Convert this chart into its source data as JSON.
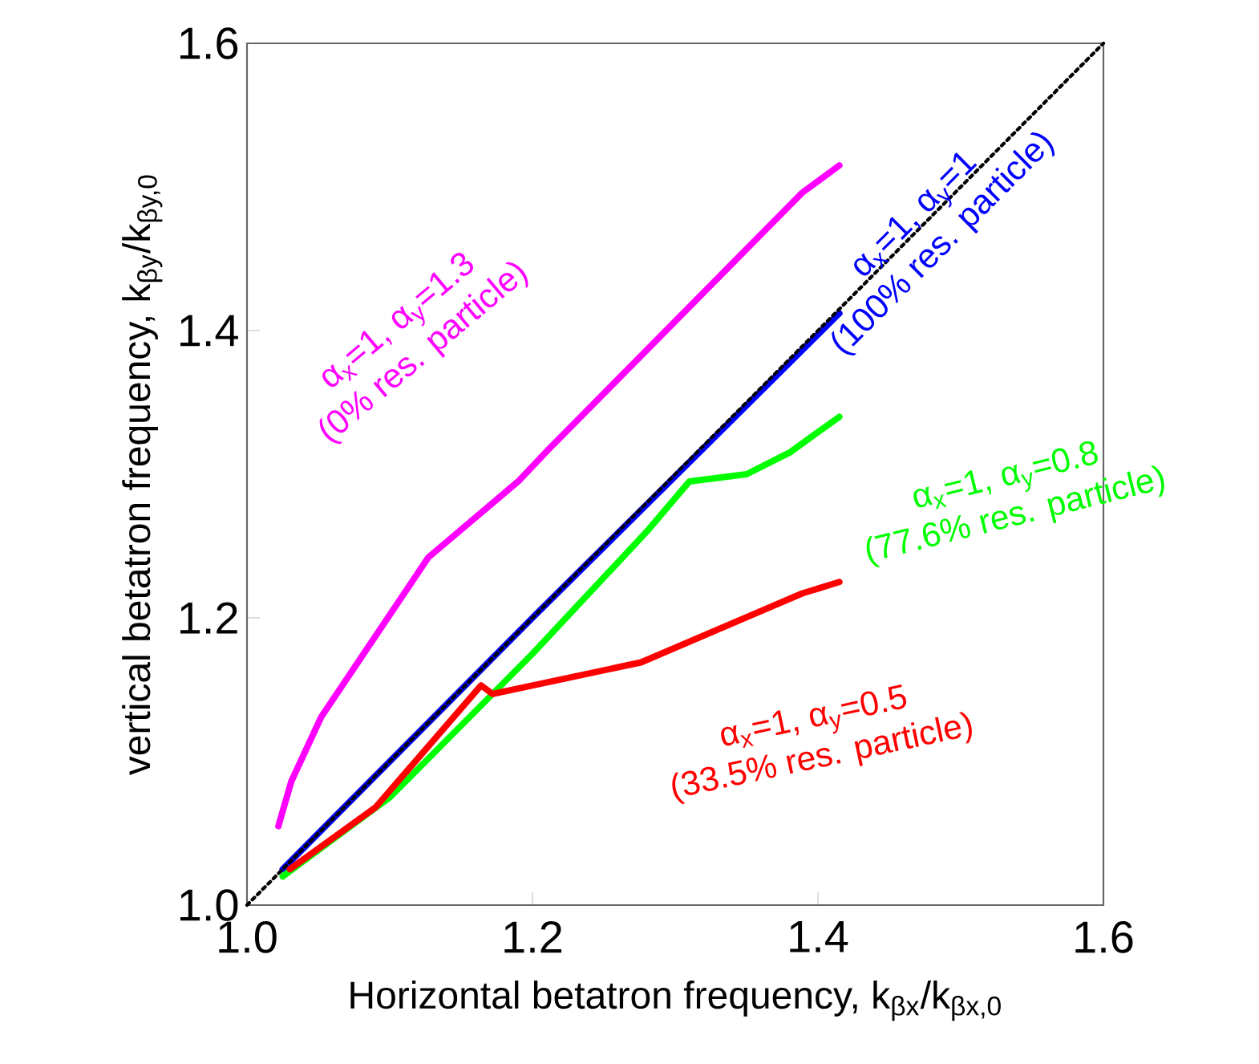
{
  "chart_data": {
    "type": "line",
    "xlabel": "Horizontal betatron frequency, k$_{βx}$/k$_{βx,0}$",
    "ylabel": "vertical betatron frequency, k$_{βy}$/k$_{βy,0}$",
    "xlim": [
      1.0,
      1.6
    ],
    "ylim": [
      1.0,
      1.6
    ],
    "xticks": [
      {
        "value": 1.0,
        "label": "1.0"
      },
      1.2,
      1.4,
      1.6
    ],
    "yticks": [
      {
        "value": 1.0,
        "label": "1.0"
      },
      1.2,
      1.4,
      1.6
    ],
    "series": [
      {
        "name": "α$_{x}$=1, α$_{y}$=1.3",
        "color": "#ff00ff",
        "x": [
          1.022,
          1.031,
          1.052,
          1.127,
          1.19,
          1.211,
          1.389,
          1.415
        ],
        "values": [
          1.055,
          1.086,
          1.131,
          1.242,
          1.295,
          1.317,
          1.496,
          1.515
        ]
      },
      {
        "name": "α$_{x}$=1, α$_{y}$=1",
        "color": "#0000ff",
        "x": [
          1.025,
          1.2,
          1.415
        ],
        "values": [
          1.025,
          1.2,
          1.412
        ]
      },
      {
        "name": "α$_{x}$=1, α$_{y}$=0.8",
        "color": "#00ff00",
        "x": [
          1.025,
          1.1,
          1.2,
          1.28,
          1.31,
          1.35,
          1.38,
          1.415
        ],
        "values": [
          1.02,
          1.075,
          1.175,
          1.26,
          1.295,
          1.3,
          1.315,
          1.34
        ]
      },
      {
        "name": "α$_{x}$=1, α$_{y}$=0.5",
        "color": "#ff0000",
        "x": [
          1.03,
          1.09,
          1.164,
          1.172,
          1.276,
          1.389,
          1.415
        ],
        "values": [
          1.025,
          1.068,
          1.153,
          1.147,
          1.169,
          1.217,
          1.225
        ]
      },
      {
        "color": "#000000",
        "line_style": "dotted",
        "x": [
          1.0,
          1.6
        ],
        "values": [
          1.0,
          1.6
        ]
      }
    ],
    "annotations": [
      "(0% res. particle)",
      "(100% res. particle)",
      "(77.6% res. particle)",
      "(33.5% res. particle)"
    ]
  }
}
